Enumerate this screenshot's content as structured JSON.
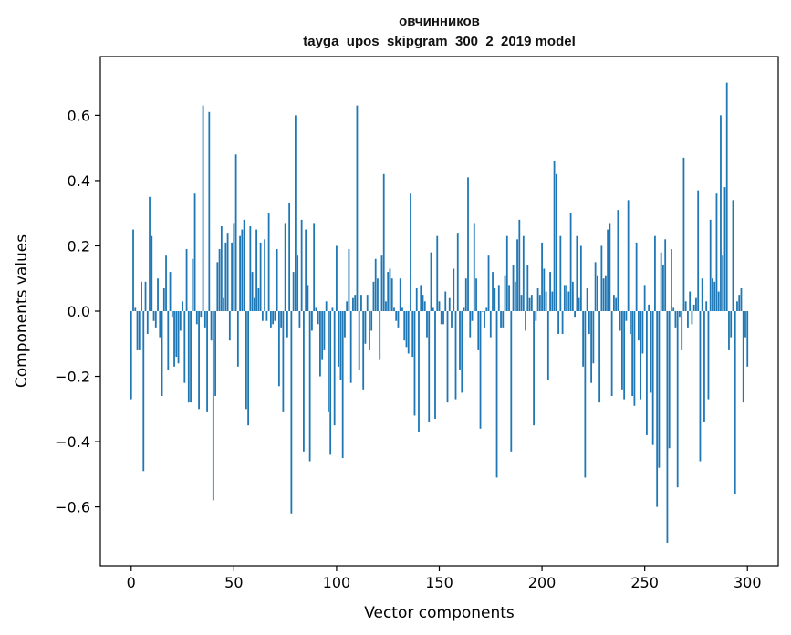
{
  "chart_data": {
    "type": "bar",
    "title_line1": "овчинников",
    "title_line2": "tayga_upos_skipgram_300_2_2019 model",
    "xlabel": "Vector components",
    "ylabel": "Components values",
    "xlim": [
      -15,
      315
    ],
    "ylim": [
      -0.78,
      0.78
    ],
    "xticks": [
      0,
      50,
      100,
      150,
      200,
      250,
      300
    ],
    "xtick_labels": [
      "0",
      "50",
      "100",
      "150",
      "200",
      "250",
      "300"
    ],
    "yticks": [
      -0.6,
      -0.4,
      -0.2,
      0.0,
      0.2,
      0.4,
      0.6
    ],
    "ytick_labels": [
      "−0.6",
      "−0.4",
      "−0.2",
      "0.0",
      "0.2",
      "0.4",
      "0.6"
    ],
    "values": [
      -0.27,
      0.25,
      0.01,
      -0.12,
      -0.12,
      0.09,
      -0.49,
      0.09,
      -0.07,
      0.35,
      0.23,
      -0.03,
      -0.05,
      0.1,
      -0.08,
      -0.26,
      0.07,
      0.17,
      -0.18,
      0.12,
      -0.02,
      -0.17,
      -0.14,
      -0.16,
      -0.06,
      0.03,
      -0.22,
      0.19,
      -0.28,
      -0.28,
      0.16,
      0.36,
      -0.04,
      -0.3,
      -0.02,
      0.63,
      -0.05,
      -0.31,
      0.61,
      -0.09,
      -0.58,
      -0.26,
      0.15,
      0.19,
      0.26,
      0.04,
      0.21,
      0.24,
      -0.09,
      0.21,
      0.27,
      0.48,
      -0.17,
      0.23,
      0.25,
      0.28,
      -0.3,
      -0.35,
      0.26,
      0.12,
      0.04,
      0.25,
      0.07,
      0.21,
      -0.03,
      0.22,
      -0.03,
      0.3,
      -0.05,
      -0.04,
      -0.03,
      0.19,
      -0.23,
      -0.05,
      -0.31,
      0.27,
      -0.08,
      0.33,
      -0.62,
      0.12,
      0.6,
      0.17,
      -0.05,
      0.28,
      -0.43,
      0.25,
      0.08,
      -0.46,
      -0.06,
      0.27,
      0.01,
      -0.04,
      -0.2,
      -0.15,
      -0.12,
      0.03,
      -0.31,
      -0.44,
      0.01,
      -0.35,
      0.2,
      -0.17,
      -0.21,
      -0.45,
      -0.08,
      0.03,
      0.19,
      -0.22,
      0.04,
      0.05,
      0.63,
      -0.18,
      0.05,
      -0.24,
      -0.1,
      0.05,
      -0.12,
      -0.06,
      0.09,
      0.16,
      0.1,
      -0.15,
      0.17,
      0.42,
      0.03,
      0.12,
      0.13,
      0.1,
      0.01,
      -0.03,
      -0.05,
      0.1,
      0.01,
      -0.09,
      -0.11,
      -0.13,
      0.36,
      -0.14,
      -0.32,
      0.07,
      -0.37,
      0.08,
      0.05,
      0.03,
      -0.08,
      -0.34,
      0.18,
      0.01,
      -0.33,
      0.23,
      0.03,
      -0.04,
      -0.04,
      0.06,
      -0.28,
      0.04,
      -0.05,
      0.13,
      -0.27,
      0.24,
      -0.18,
      -0.25,
      0.01,
      0.1,
      0.41,
      -0.08,
      -0.03,
      0.27,
      0.1,
      -0.12,
      -0.36,
      0.0,
      -0.05,
      0.01,
      0.17,
      -0.08,
      0.12,
      0.07,
      -0.51,
      0.08,
      -0.05,
      -0.05,
      0.11,
      0.23,
      0.08,
      -0.43,
      0.14,
      0.09,
      0.22,
      0.28,
      0.05,
      0.23,
      -0.06,
      0.14,
      0.04,
      0.05,
      -0.35,
      -0.03,
      0.07,
      0.05,
      0.21,
      0.13,
      0.06,
      -0.21,
      0.12,
      0.06,
      0.46,
      0.42,
      -0.07,
      0.23,
      -0.07,
      0.08,
      0.08,
      0.06,
      0.3,
      0.09,
      -0.02,
      0.23,
      0.04,
      0.2,
      -0.17,
      -0.51,
      0.07,
      -0.07,
      -0.22,
      -0.16,
      0.15,
      0.11,
      -0.28,
      0.2,
      0.1,
      0.11,
      0.25,
      0.27,
      -0.26,
      0.05,
      0.04,
      0.31,
      -0.06,
      -0.24,
      -0.27,
      -0.03,
      0.34,
      -0.07,
      -0.26,
      -0.29,
      0.21,
      -0.09,
      -0.27,
      -0.13,
      0.08,
      -0.38,
      0.02,
      -0.25,
      -0.41,
      0.23,
      -0.6,
      -0.48,
      0.18,
      0.14,
      0.22,
      -0.71,
      -0.42,
      0.19,
      0.01,
      -0.05,
      -0.54,
      -0.02,
      -0.12,
      0.47,
      0.03,
      -0.05,
      0.06,
      -0.04,
      0.02,
      0.04,
      0.37,
      -0.46,
      0.1,
      -0.34,
      0.03,
      -0.27,
      0.28,
      0.1,
      0.09,
      0.36,
      0.06,
      0.6,
      0.17,
      0.38,
      0.7,
      -0.12,
      -0.08,
      0.34,
      -0.56,
      0.03,
      0.05,
      0.07,
      -0.28,
      -0.08,
      -0.17
    ],
    "bar_color": "#1f77b4",
    "grid": false,
    "legend": "none"
  }
}
